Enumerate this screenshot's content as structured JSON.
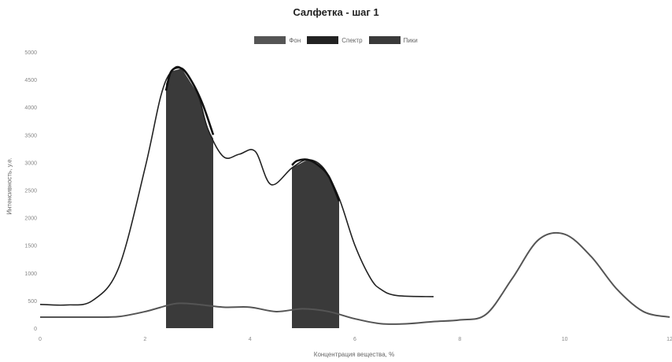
{
  "chart_data": {
    "type": "line",
    "title": "Салфетка - шаг 1",
    "xlabel": "Концентрация вещества, %",
    "ylabel": "Интенсивность, у.е.",
    "xlim": [
      0,
      12
    ],
    "ylim": [
      0,
      5000
    ],
    "xticks": [
      0,
      2,
      4,
      6,
      8,
      10,
      12
    ],
    "yticks": [
      0,
      500,
      1000,
      1500,
      2000,
      2500,
      3000,
      3500,
      4000,
      4500,
      5000
    ],
    "legend": [
      "Фон",
      "Спектр",
      "Пики"
    ],
    "legend_position": "top-center",
    "colors": {
      "background": "#555555",
      "spectrum": "#222222",
      "peaks": "#3a3a3a"
    },
    "series": [
      {
        "name": "Фон",
        "x": [
          0,
          0.5,
          1,
          1.5,
          2,
          2.5,
          2.7,
          3,
          3.5,
          4,
          4.5,
          5,
          5.5,
          6,
          6.5,
          7,
          7.5,
          8,
          8.5,
          9,
          9.5,
          10,
          10.5,
          11,
          11.5,
          12
        ],
        "y": [
          200,
          200,
          200,
          210,
          300,
          430,
          450,
          430,
          380,
          380,
          300,
          350,
          300,
          170,
          80,
          80,
          120,
          150,
          250,
          900,
          1600,
          1700,
          1300,
          700,
          300,
          200
        ]
      },
      {
        "name": "Спектр",
        "x": [
          0,
          0.5,
          1,
          1.5,
          2,
          2.3,
          2.5,
          2.7,
          3,
          3.2,
          3.5,
          3.8,
          4.1,
          4.4,
          4.8,
          5.1,
          5.4,
          5.7,
          6,
          6.3,
          6.5,
          6.8,
          7.5
        ],
        "y": [
          430,
          420,
          500,
          1100,
          2900,
          4200,
          4650,
          4700,
          4250,
          3600,
          3100,
          3150,
          3200,
          2600,
          2900,
          3050,
          2900,
          2350,
          1500,
          900,
          700,
          590,
          570
        ]
      },
      {
        "name": "Пики",
        "x": [
          2.4,
          2.5,
          2.7,
          2.9,
          3.1,
          3.3,
          4.8,
          4.9,
          5.1,
          5.3,
          5.5,
          5.7
        ],
        "y": [
          4300,
          4650,
          4700,
          4450,
          4050,
          3500,
          2950,
          3030,
          3050,
          2950,
          2750,
          2300
        ]
      }
    ],
    "peak_regions": [
      {
        "x": [
          2.4,
          3.3
        ]
      },
      {
        "x": [
          4.8,
          5.7
        ]
      }
    ]
  }
}
